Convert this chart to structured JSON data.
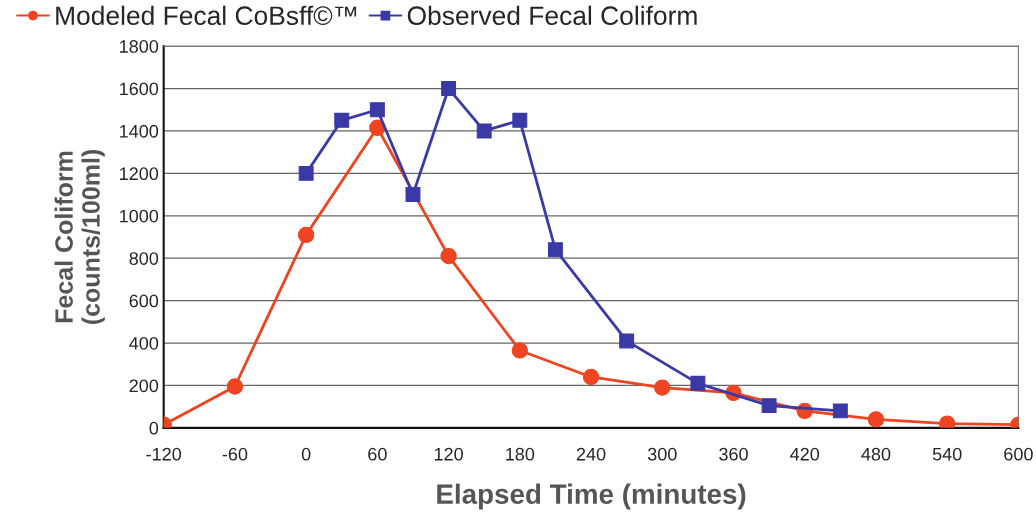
{
  "chart_data": {
    "type": "line",
    "xlabel": "Elapsed Time (minutes)",
    "ylabel": "Fecal Coliform\n(counts/100ml)",
    "series": [
      {
        "name": "Modeled Fecal CoBsff©™",
        "color": "#ee4422",
        "marker": "circle",
        "x": [
          -120,
          -60,
          0,
          60,
          120,
          180,
          240,
          300,
          360,
          420,
          480,
          540,
          600
        ],
        "values": [
          15,
          195,
          910,
          1415,
          810,
          365,
          240,
          190,
          165,
          80,
          40,
          20,
          15
        ]
      },
      {
        "name": "Observed Fecal Coliform",
        "color": "#3a3aa6",
        "marker": "square",
        "x": [
          0,
          30,
          60,
          90,
          120,
          150,
          180,
          210,
          270,
          330,
          390,
          450
        ],
        "values": [
          1200,
          1450,
          1500,
          1100,
          1600,
          1400,
          1450,
          840,
          410,
          210,
          105,
          80
        ]
      }
    ],
    "xlim": [
      -120,
      600
    ],
    "xticks": [
      -120,
      -60,
      0,
      60,
      120,
      180,
      240,
      300,
      360,
      420,
      480,
      540,
      600
    ],
    "ylim": [
      0,
      1800
    ],
    "yticks": [
      0,
      200,
      400,
      600,
      800,
      1000,
      1200,
      1400,
      1600,
      1800
    ],
    "grid": "y",
    "legend": "top left",
    "line_style": "solid"
  }
}
